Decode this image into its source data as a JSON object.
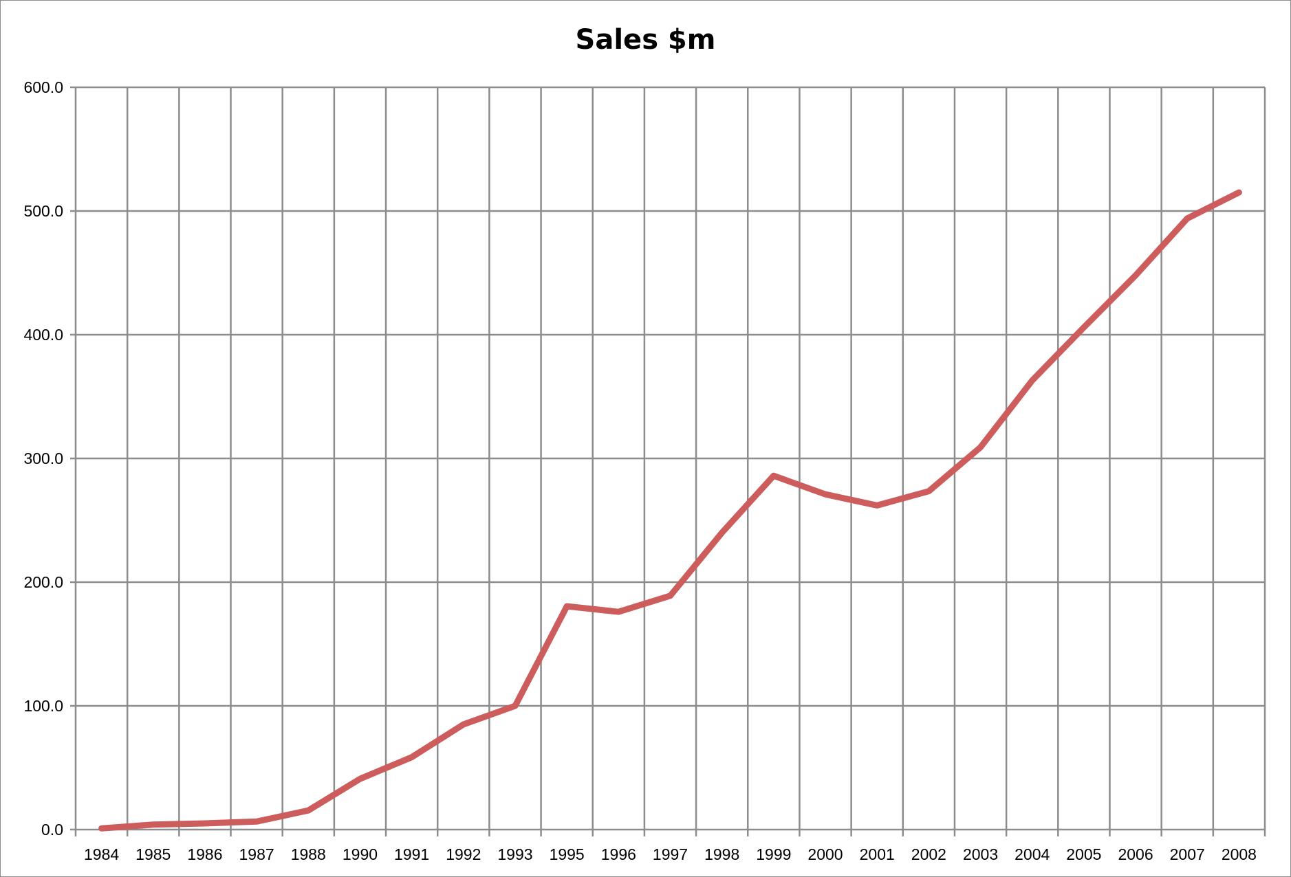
{
  "chart_data": {
    "type": "line",
    "title": "Sales $m",
    "xlabel": "",
    "ylabel": "",
    "categories": [
      "1984",
      "1985",
      "1986",
      "1987",
      "1988",
      "1990",
      "1991",
      "1992",
      "1993",
      "1995",
      "1996",
      "1997",
      "1998",
      "1999",
      "2000",
      "2001",
      "2002",
      "2003",
      "2004",
      "2005",
      "2006",
      "2007",
      "2008"
    ],
    "series": [
      {
        "name": "",
        "color": "#cd5c5c",
        "values": [
          1.0,
          4.0,
          5.0,
          6.5,
          15.5,
          41.0,
          58.5,
          85.0,
          100.0,
          180.5,
          176.0,
          189.0,
          240.0,
          286.0,
          271.0,
          262.0,
          273.5,
          309.0,
          363.0,
          406.0,
          448.0,
          494.0,
          515.0
        ]
      }
    ],
    "ylim": [
      0,
      600
    ],
    "yticks": [
      0,
      100,
      200,
      300,
      400,
      500,
      600
    ],
    "ytick_labels": [
      "0.0",
      "100.0",
      "200.0",
      "300.0",
      "400.0",
      "500.0",
      "600.0"
    ],
    "grid": true,
    "legend": "none"
  }
}
